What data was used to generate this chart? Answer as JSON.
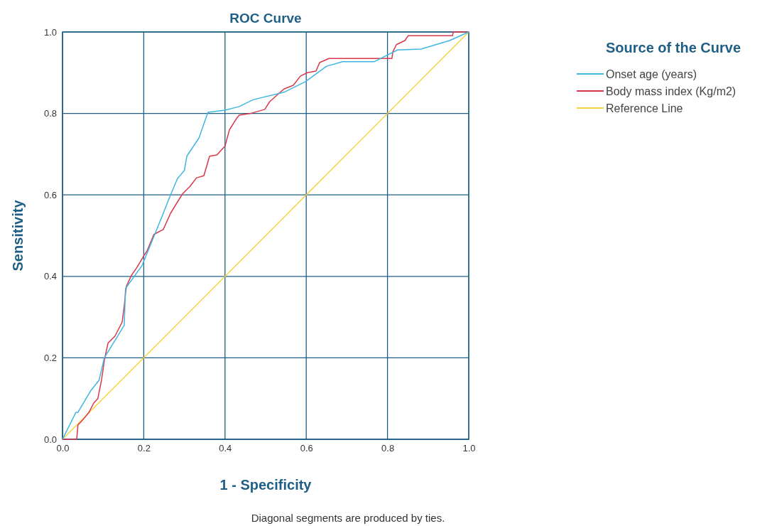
{
  "chart_data": {
    "type": "line",
    "title": "ROC Curve",
    "xlabel": "1 - Specificity",
    "ylabel": "Sensitivity",
    "legend_title": "Source of the Curve",
    "legend": "right",
    "grid": true,
    "xlim": [
      0,
      1
    ],
    "ylim": [
      0,
      1
    ],
    "xticks": [
      {
        "value": 0,
        "label": "0.0"
      },
      0.2,
      0.4,
      0.6,
      0.8,
      {
        "value": 1,
        "label": "1.0"
      }
    ],
    "yticks": [
      {
        "value": 0,
        "label": "0.0"
      },
      0.2,
      0.4,
      0.6,
      0.8,
      {
        "value": 1,
        "label": "1.0"
      }
    ],
    "series": [
      {
        "name": "Onset age (years)",
        "color": "#3fb6e0",
        "x": [
          0,
          0.033,
          0.038,
          0.07,
          0.09,
          0.103,
          0.152,
          0.155,
          0.196,
          0.23,
          0.266,
          0.283,
          0.3,
          0.306,
          0.336,
          0.358,
          0.4,
          0.435,
          0.47,
          0.545,
          0.598,
          0.65,
          0.69,
          0.767,
          0.825,
          0.883,
          0.953,
          1
        ],
        "values": [
          0,
          0.066,
          0.066,
          0.12,
          0.145,
          0.2,
          0.28,
          0.37,
          0.427,
          0.51,
          0.6,
          0.64,
          0.66,
          0.695,
          0.74,
          0.803,
          0.808,
          0.817,
          0.834,
          0.852,
          0.878,
          0.916,
          0.927,
          0.927,
          0.956,
          0.958,
          0.979,
          1
        ]
      },
      {
        "name": "Body mass index (Kg/m2)",
        "color": "#d9374a",
        "x": [
          0,
          0.035,
          0.038,
          0.052,
          0.065,
          0.077,
          0.087,
          0.096,
          0.103,
          0.112,
          0.129,
          0.147,
          0.152,
          0.157,
          0.17,
          0.182,
          0.2,
          0.208,
          0.225,
          0.248,
          0.266,
          0.295,
          0.313,
          0.33,
          0.348,
          0.362,
          0.38,
          0.4,
          0.411,
          0.428,
          0.435,
          0.463,
          0.498,
          0.51,
          0.545,
          0.568,
          0.586,
          0.603,
          0.624,
          0.633,
          0.656,
          0.811,
          0.813,
          0.822,
          0.843,
          0.851,
          0.96,
          0.962,
          1
        ],
        "values": [
          0,
          0,
          0.035,
          0.05,
          0.066,
          0.089,
          0.1,
          0.145,
          0.194,
          0.236,
          0.253,
          0.288,
          0.328,
          0.375,
          0.403,
          0.42,
          0.45,
          0.462,
          0.503,
          0.515,
          0.555,
          0.602,
          0.62,
          0.642,
          0.647,
          0.695,
          0.698,
          0.72,
          0.76,
          0.787,
          0.796,
          0.8,
          0.81,
          0.829,
          0.86,
          0.869,
          0.892,
          0.9,
          0.904,
          0.925,
          0.935,
          0.935,
          0.951,
          0.969,
          0.979,
          0.991,
          0.991,
          1,
          1
        ]
      },
      {
        "name": "Reference Line",
        "color": "#f5d442",
        "x": [
          0,
          1
        ],
        "values": [
          0,
          1
        ]
      }
    ],
    "annotations": [
      "Diagonal segments are produced by ties."
    ]
  }
}
